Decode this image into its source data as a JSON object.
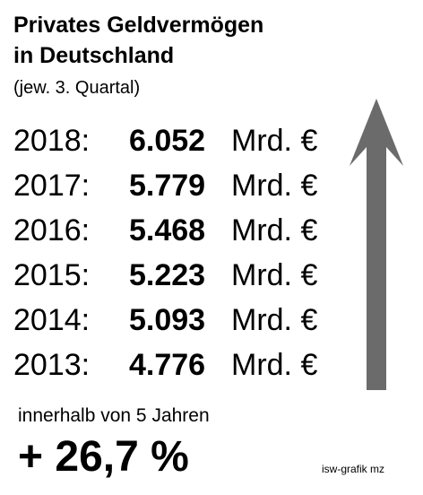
{
  "header": {
    "title_line_1": "Privates Geldvermögen",
    "title_line_2": "in Deutschland",
    "subtitle": "(jew. 3. Quartal)"
  },
  "footer": {
    "note": "innerhalb von 5 Jahren",
    "change": "+ 26,7 %",
    "credit": "isw-grafik mz"
  },
  "colors": {
    "arrow": "#6b6b6b",
    "text": "#000000",
    "background": "#ffffff"
  },
  "chart_data": {
    "type": "table",
    "title": "Privates Geldvermögen in Deutschland",
    "subtitle": "(jew. 3. Quartal)",
    "unit": "Mrd. €",
    "rows": [
      {
        "year": "2018:",
        "value": "6.052",
        "unit": "Mrd. €"
      },
      {
        "year": "2017:",
        "value": "5.779",
        "unit": "Mrd. €"
      },
      {
        "year": "2016:",
        "value": "5.468",
        "unit": "Mrd. €"
      },
      {
        "year": "2015:",
        "value": "5.223",
        "unit": "Mrd. €"
      },
      {
        "year": "2014:",
        "value": "5.093",
        "unit": "Mrd. €"
      },
      {
        "year": "2013:",
        "value": "4.776",
        "unit": "Mrd. €"
      }
    ],
    "annotation": "innerhalb von 5 Jahren",
    "change": "+ 26,7 %"
  }
}
